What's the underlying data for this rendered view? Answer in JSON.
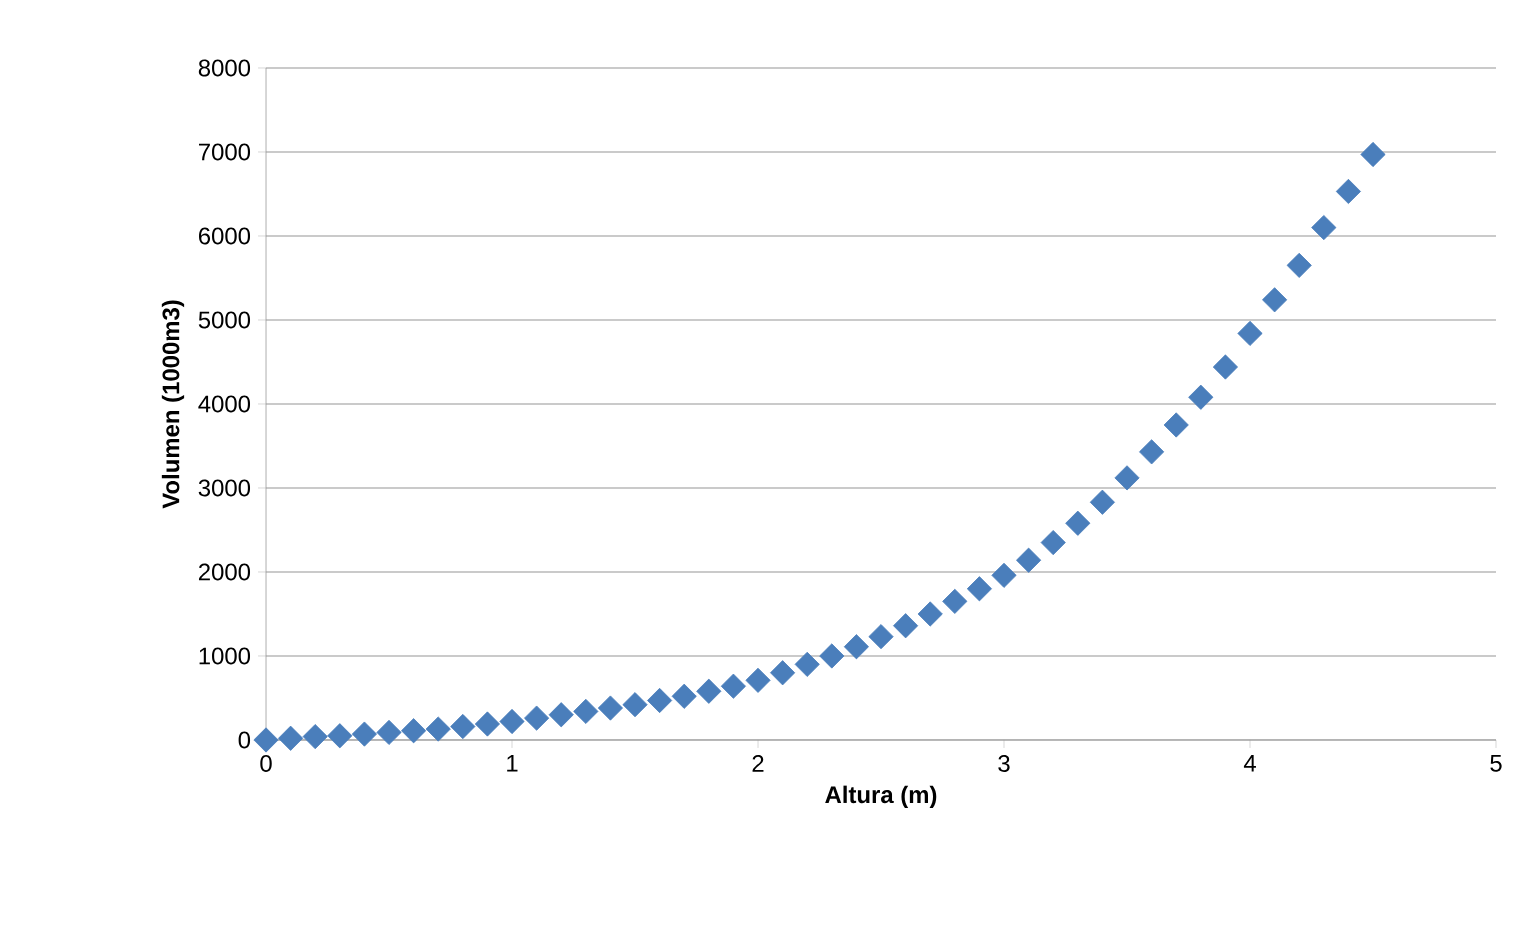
{
  "chart_data": {
    "type": "scatter",
    "xlabel": "Altura (m)",
    "ylabel": "Volumen (1000m3)",
    "x": [
      0,
      0.1,
      0.2,
      0.3,
      0.4,
      0.5,
      0.6,
      0.7,
      0.8,
      0.9,
      1.0,
      1.1,
      1.2,
      1.3,
      1.4,
      1.5,
      1.6,
      1.7,
      1.8,
      1.9,
      2.0,
      2.1,
      2.2,
      2.3,
      2.4,
      2.5,
      2.6,
      2.7,
      2.8,
      2.9,
      3.0,
      3.1,
      3.2,
      3.3,
      3.4,
      3.5,
      3.6,
      3.7,
      3.8,
      3.9,
      4.0,
      4.1,
      4.2,
      4.3,
      4.4,
      4.5
    ],
    "series": [
      {
        "color": "#4a7ebb",
        "values": [
          0,
          20,
          40,
          50,
          70,
          90,
          110,
          130,
          160,
          190,
          220,
          260,
          300,
          340,
          380,
          420,
          470,
          520,
          580,
          640,
          710,
          800,
          900,
          1000,
          1110,
          1230,
          1360,
          1500,
          1650,
          1800,
          1960,
          2140,
          2350,
          2580,
          2830,
          3120,
          3430,
          3750,
          4080,
          4440,
          4840,
          5240,
          5650,
          6100,
          6530,
          6970
        ]
      }
    ],
    "xlim": [
      0,
      5
    ],
    "xticks": [
      0,
      1,
      2,
      3,
      4,
      5
    ],
    "ylim": [
      0,
      8000
    ],
    "yticks": [
      0,
      1000,
      2000,
      3000,
      4000,
      5000,
      6000,
      7000,
      8000
    ],
    "grid": "y",
    "marker": "diamond"
  }
}
